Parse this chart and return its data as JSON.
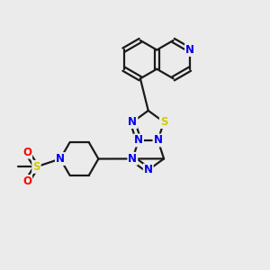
{
  "bg_color": "#ebebeb",
  "bond_color": "#1a1a1a",
  "bond_width": 1.6,
  "atom_colors": {
    "N": "#0000ee",
    "S": "#cccc00",
    "O": "#ff0000",
    "C": "#1a1a1a"
  },
  "figsize": [
    3.0,
    3.0
  ],
  "dpi": 100
}
